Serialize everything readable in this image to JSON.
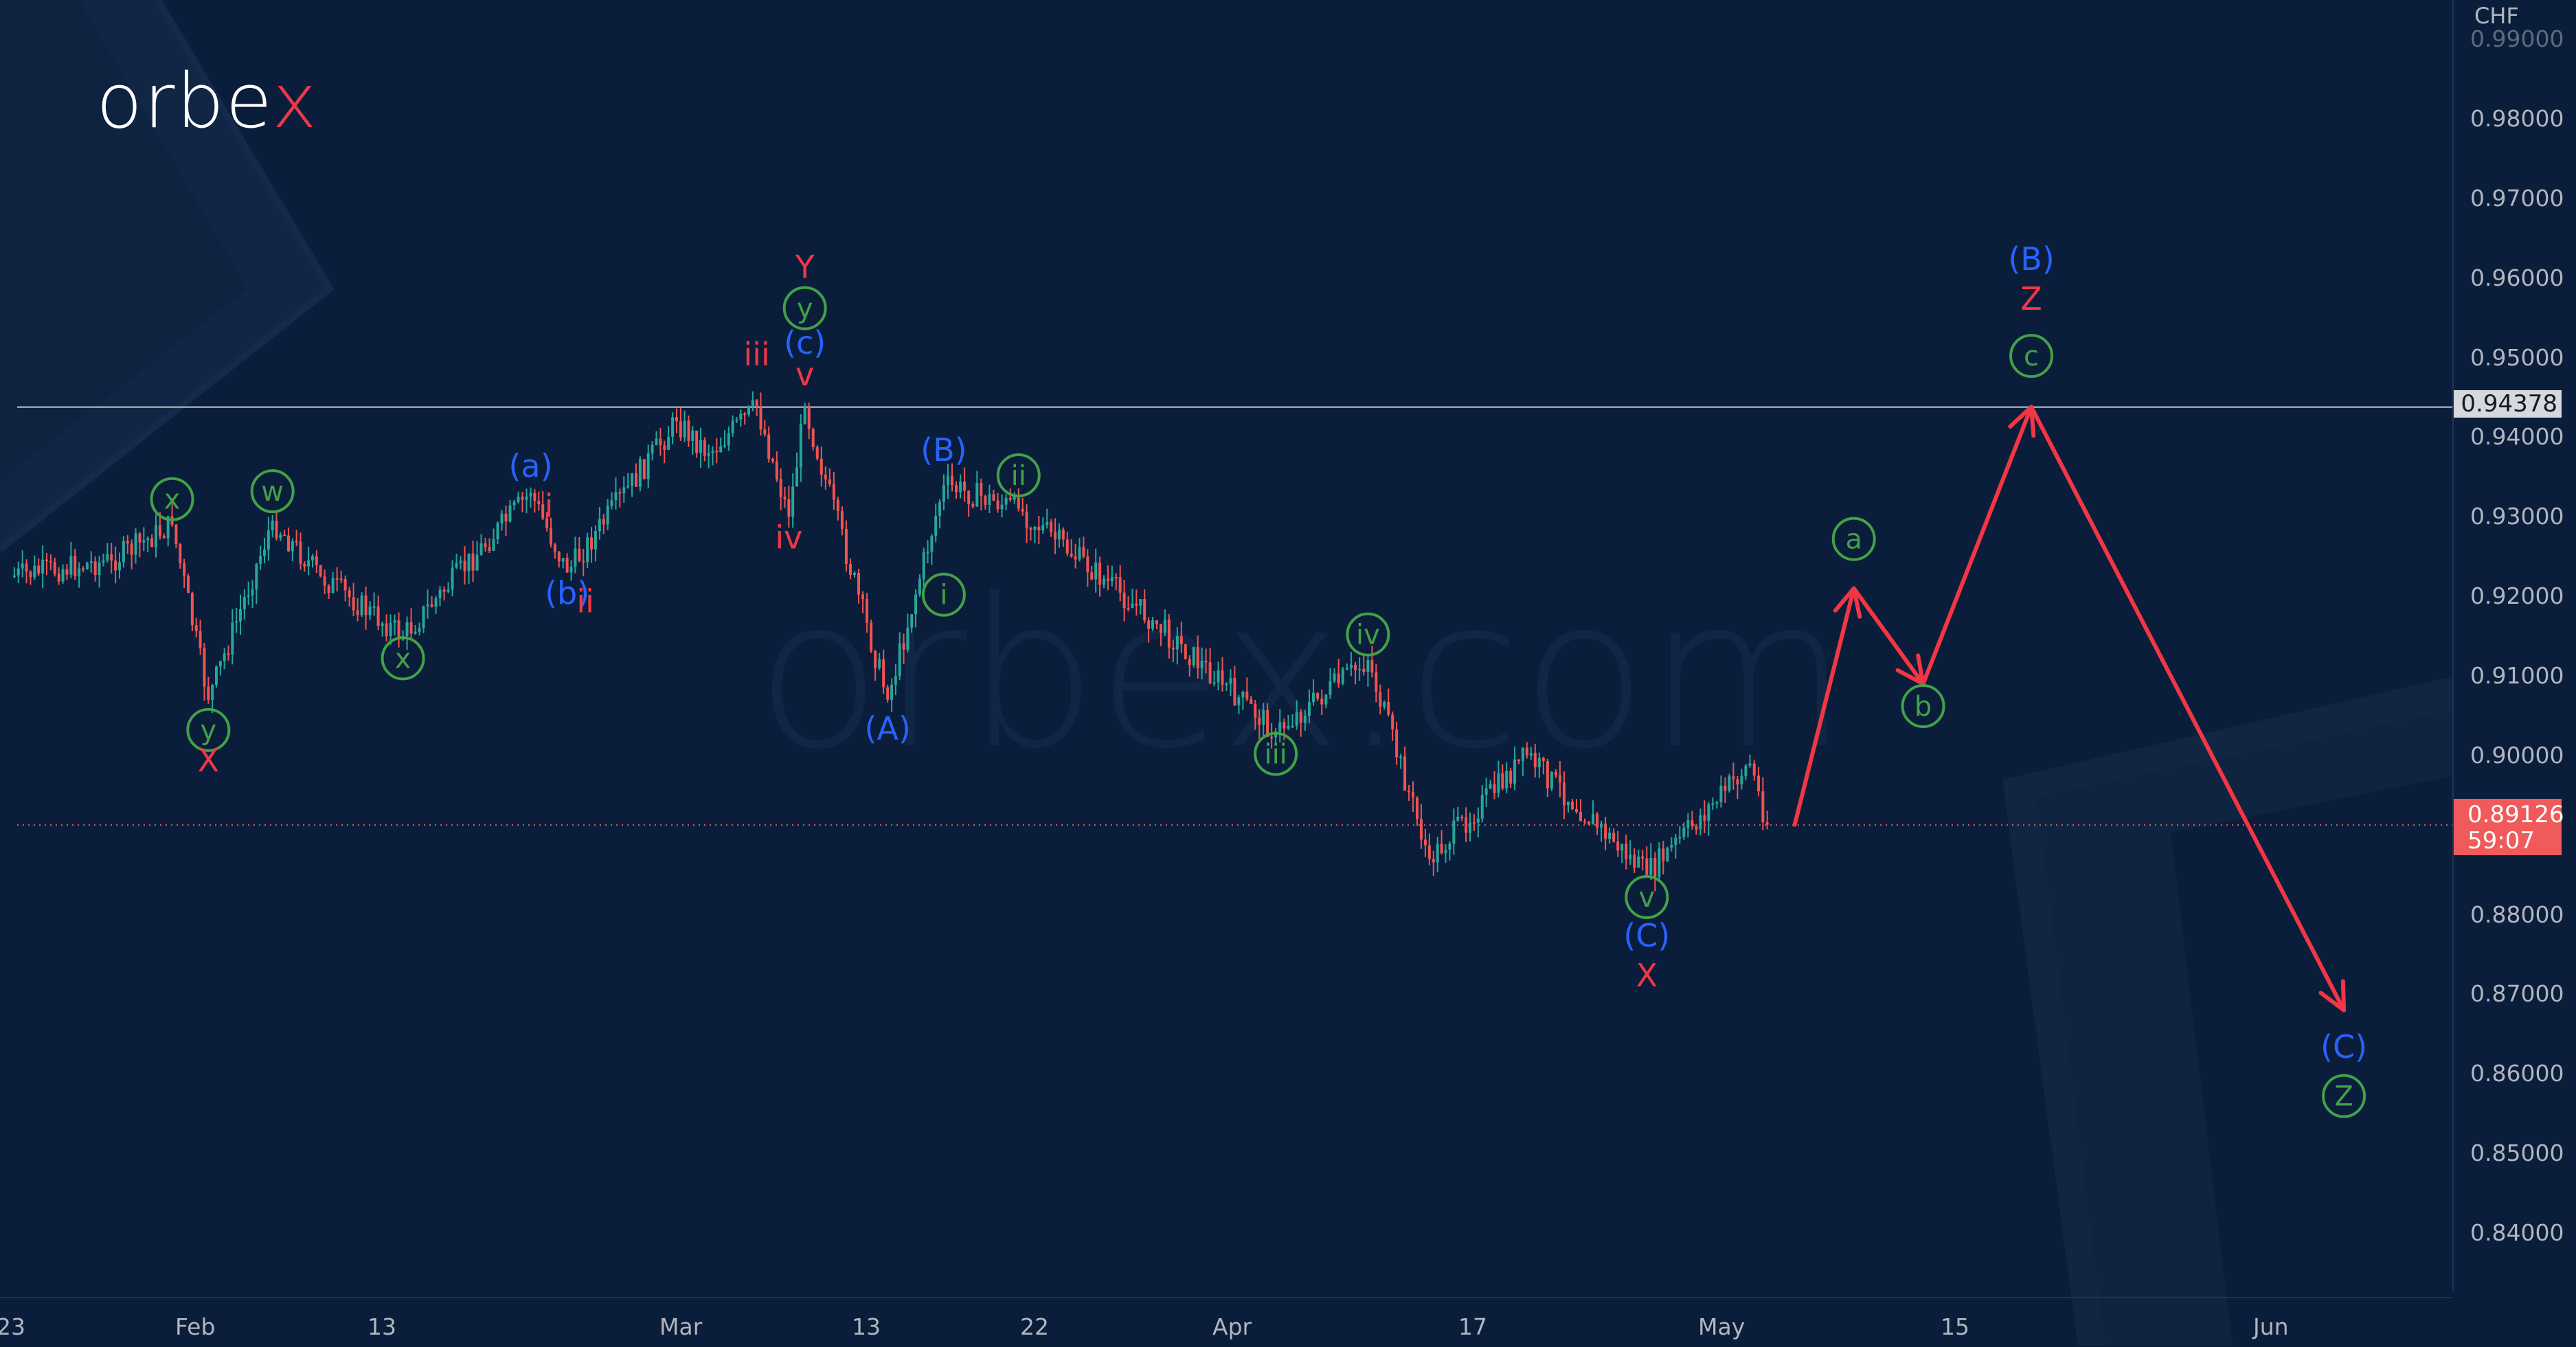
{
  "brand": {
    "logo_text_main": "orbe",
    "logo_text_accent": "x",
    "watermark": "orbex.com",
    "accent_color": "#e8394a"
  },
  "colors": {
    "background": "#0a1e3b",
    "up_candle": "#26a69a",
    "down_candle": "#ef5350",
    "wave_red": "#f23645",
    "wave_blue": "#2962ff",
    "wave_green": "#43a047",
    "level_line": "#c9ccd3",
    "current_price_bg": "#f05a5a",
    "axis_text": "#b2b5be"
  },
  "price_axis": {
    "currency": "CHF",
    "ticks": [
      "0.99000",
      "0.98000",
      "0.97000",
      "0.96000",
      "0.95000",
      "0.94000",
      "0.93000",
      "0.92000",
      "0.91000",
      "0.90000",
      "0.89000",
      "0.88000",
      "0.87000",
      "0.86000",
      "0.85000",
      "0.84000"
    ],
    "level_label": "0.94378",
    "current_price": "0.89126",
    "countdown": "59:07"
  },
  "time_axis": {
    "ticks": [
      "23",
      "Feb",
      "13",
      "Mar",
      "13",
      "22",
      "Apr",
      "17",
      "May",
      "15",
      "Jun"
    ]
  },
  "chart_data": {
    "type": "line",
    "title": "",
    "instrument_quote": "CHF",
    "xlabel": "",
    "ylabel": "CHF",
    "ylim": [
      0.835,
      0.995
    ],
    "grid": false,
    "horizontal_level": 0.94378,
    "current_price": 0.89126,
    "x_ticks": [
      "23",
      "Feb",
      "13",
      "Mar",
      "13",
      "22",
      "Apr",
      "17",
      "May",
      "15",
      "Jun"
    ],
    "price_path": [
      {
        "t": "Jan 23",
        "p": 0.9225
      },
      {
        "t": "Jan 28",
        "p": 0.9245
      },
      {
        "t": "Jan 31",
        "p": 0.929
      },
      {
        "t": "Feb 2",
        "p": 0.907
      },
      {
        "t": "Feb 6",
        "p": 0.9295
      },
      {
        "t": "Feb 9",
        "p": 0.9225
      },
      {
        "t": "Feb 14",
        "p": 0.915
      },
      {
        "t": "Feb 21",
        "p": 0.933
      },
      {
        "t": "Feb 23",
        "p": 0.923
      },
      {
        "t": "Mar 1",
        "p": 0.942
      },
      {
        "t": "Mar 3",
        "p": 0.938
      },
      {
        "t": "Mar 6",
        "p": 0.9438
      },
      {
        "t": "Mar 8",
        "p": 0.93
      },
      {
        "t": "Mar 9",
        "p": 0.9438
      },
      {
        "t": "Mar 14",
        "p": 0.907
      },
      {
        "t": "Mar 17",
        "p": 0.934
      },
      {
        "t": "Mar 21",
        "p": 0.931
      },
      {
        "t": "Mar 28",
        "p": 0.917
      },
      {
        "t": "Apr 4",
        "p": 0.903
      },
      {
        "t": "Apr 10",
        "p": 0.912
      },
      {
        "t": "Apr 14",
        "p": 0.887
      },
      {
        "t": "Apr 20",
        "p": 0.9
      },
      {
        "t": "Apr 27",
        "p": 0.885
      },
      {
        "t": "May 3",
        "p": 0.899
      },
      {
        "t": "May 4",
        "p": 0.8913
      }
    ],
    "forecast_path": [
      {
        "t": "May 4",
        "p": 0.8913
      },
      {
        "t": "May 9",
        "p": 0.921
      },
      {
        "t": "May 13",
        "p": 0.909
      },
      {
        "t": "May 19",
        "p": 0.9438
      },
      {
        "t": "Jun 5",
        "p": 0.868
      }
    ],
    "wave_labels": [
      {
        "text": "x",
        "style": "circled-green",
        "at": "Jan 31",
        "p": 0.931
      },
      {
        "text": "y",
        "style": "circled-green",
        "at": "Feb 2",
        "p": 0.902
      },
      {
        "text": "X",
        "style": "red",
        "at": "Feb 2",
        "p": 0.898
      },
      {
        "text": "w",
        "style": "circled-green",
        "at": "Feb 6",
        "p": 0.932
      },
      {
        "text": "x",
        "style": "circled-green",
        "at": "Feb 14",
        "p": 0.911
      },
      {
        "text": "(a)",
        "style": "blue",
        "at": "Feb 21",
        "p": 0.935
      },
      {
        "text": "i",
        "style": "red",
        "at": "Feb 22",
        "p": 0.93
      },
      {
        "text": "(b)",
        "style": "blue",
        "at": "Feb 23",
        "p": 0.919
      },
      {
        "text": "ii",
        "style": "red",
        "at": "Feb 24",
        "p": 0.918
      },
      {
        "text": "iii",
        "style": "red",
        "at": "Mar 6",
        "p": 0.949
      },
      {
        "text": "Y",
        "style": "red",
        "at": "Mar 9",
        "p": 0.96
      },
      {
        "text": "y",
        "style": "circled-green",
        "at": "Mar 9",
        "p": 0.955
      },
      {
        "text": "(c)",
        "style": "blue",
        "at": "Mar 9",
        "p": 0.9505
      },
      {
        "text": "v",
        "style": "red",
        "at": "Mar 9",
        "p": 0.9465
      },
      {
        "text": "iv",
        "style": "red",
        "at": "Mar 8",
        "p": 0.926
      },
      {
        "text": "(A)",
        "style": "blue",
        "at": "Mar 14",
        "p": 0.902
      },
      {
        "text": "(B)",
        "style": "blue",
        "at": "Mar 17",
        "p": 0.937
      },
      {
        "text": "i",
        "style": "circled-green",
        "at": "Mar 17",
        "p": 0.919
      },
      {
        "text": "ii",
        "style": "circled-green",
        "at": "Mar 21",
        "p": 0.934
      },
      {
        "text": "iii",
        "style": "circled-green",
        "at": "Apr 4",
        "p": 0.899
      },
      {
        "text": "iv",
        "style": "circled-green",
        "at": "Apr 10",
        "p": 0.914
      },
      {
        "text": "v",
        "style": "circled-green",
        "at": "Apr 27",
        "p": 0.881
      },
      {
        "text": "(C)",
        "style": "blue",
        "at": "Apr 27",
        "p": 0.876
      },
      {
        "text": "X",
        "style": "red",
        "at": "Apr 27",
        "p": 0.871
      },
      {
        "text": "a",
        "style": "circled-green",
        "at": "May 9",
        "p": 0.926
      },
      {
        "text": "b",
        "style": "circled-green",
        "at": "May 13",
        "p": 0.905
      },
      {
        "text": "(B)",
        "style": "blue",
        "at": "May 19",
        "p": 0.961
      },
      {
        "text": "Z",
        "style": "red",
        "at": "May 19",
        "p": 0.956
      },
      {
        "text": "c",
        "style": "circled-green",
        "at": "May 19",
        "p": 0.949
      },
      {
        "text": "(C)",
        "style": "blue",
        "at": "Jun 5",
        "p": 0.862
      },
      {
        "text": "Z",
        "style": "circled-green",
        "at": "Jun 5",
        "p": 0.856
      }
    ]
  }
}
